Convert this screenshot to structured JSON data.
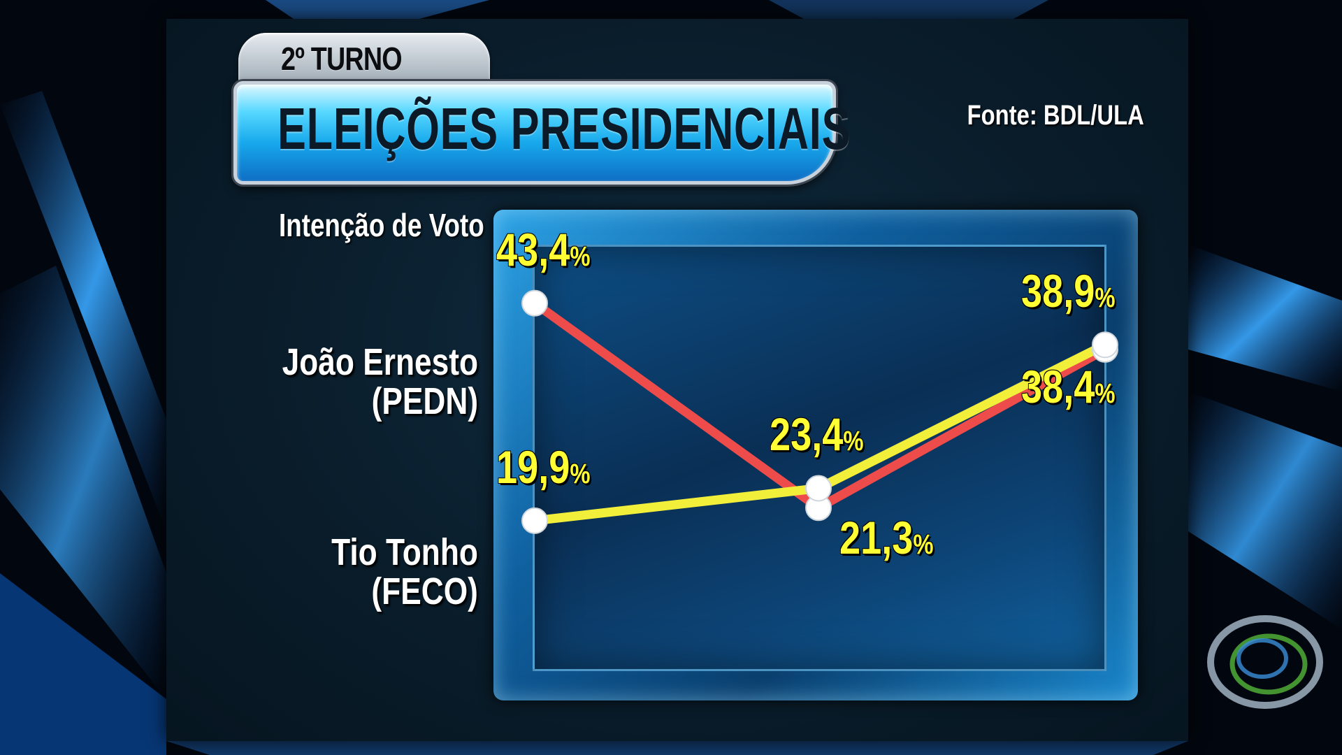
{
  "header": {
    "turno": "2º TURNO",
    "title": "ELEIÇÕES PRESIDENCIAIS",
    "source": "Fonte: BDL/ULA"
  },
  "chart_data": {
    "type": "line",
    "title": "ELEIÇÕES PRESIDENCIAIS",
    "ylabel": "Intenção de Voto",
    "x": [
      1,
      2,
      3
    ],
    "ylim": [
      15,
      50
    ],
    "value_suffix": "%",
    "series": [
      {
        "name_lines": [
          "João Ernesto",
          "(PEDN)"
        ],
        "color": "#ee4b4b",
        "values": [
          43.4,
          21.3,
          38.4
        ],
        "labels": [
          "43,4",
          "21,3",
          "38,4"
        ]
      },
      {
        "name_lines": [
          "Tio Tonho",
          "(FECO)"
        ],
        "color": "#f2ef3a",
        "values": [
          19.9,
          23.4,
          38.9
        ],
        "labels": [
          "19,9",
          "23,4",
          "38,9"
        ]
      }
    ]
  },
  "colors": {
    "label_yellow": "#ffff33",
    "frame_blue": "#1a87cc",
    "title_cyan": "#57d8ff"
  }
}
